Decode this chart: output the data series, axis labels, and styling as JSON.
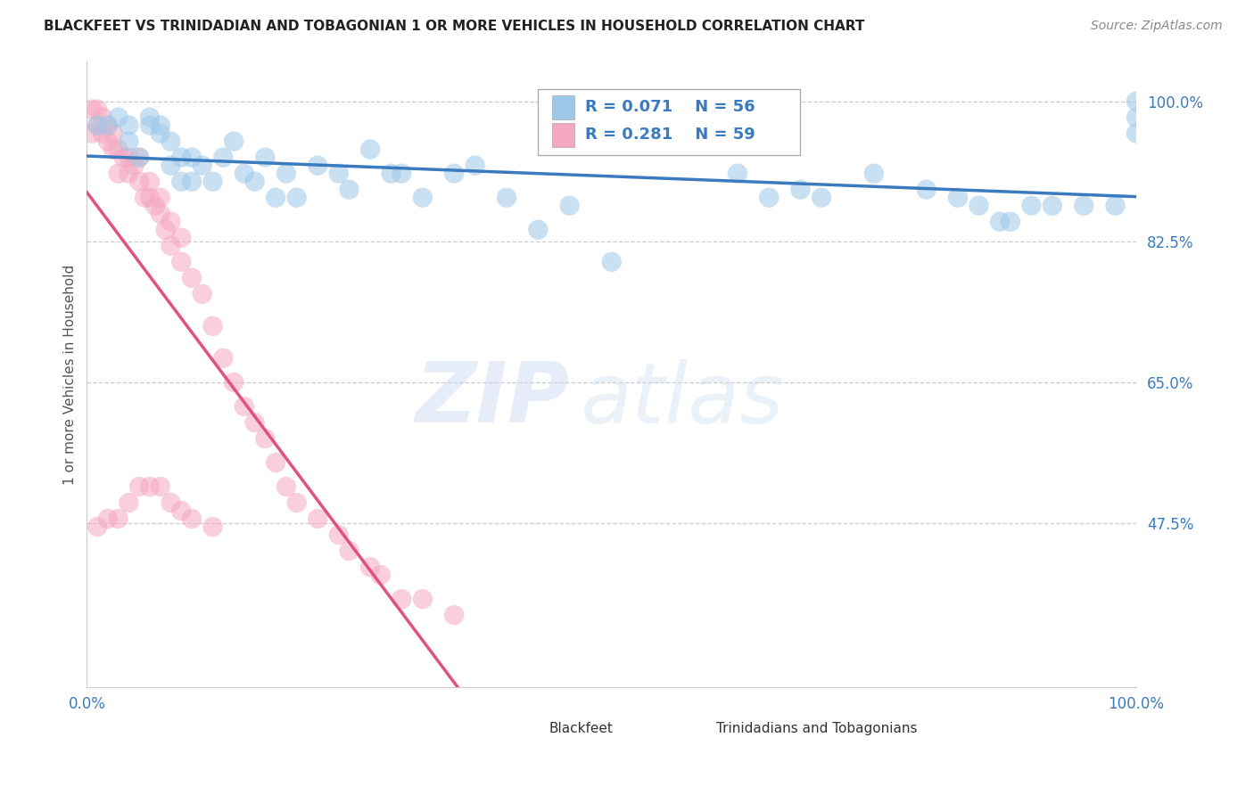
{
  "title": "BLACKFEET VS TRINIDADIAN AND TOBAGONIAN 1 OR MORE VEHICLES IN HOUSEHOLD CORRELATION CHART",
  "source": "Source: ZipAtlas.com",
  "ylabel": "1 or more Vehicles in Household",
  "xlim": [
    0.0,
    1.0
  ],
  "ylim": [
    0.27,
    1.05
  ],
  "yticks": [
    0.475,
    0.65,
    0.825,
    1.0
  ],
  "ytick_labels": [
    "47.5%",
    "65.0%",
    "82.5%",
    "100.0%"
  ],
  "xticks": [
    0.0,
    0.25,
    0.5,
    0.75,
    1.0
  ],
  "xtick_labels": [
    "0.0%",
    "",
    "",
    "",
    "100.0%"
  ],
  "blue_R": 0.071,
  "blue_N": 56,
  "pink_R": 0.281,
  "pink_N": 59,
  "blue_color": "#9ec8e8",
  "pink_color": "#f4a8bf",
  "blue_line_color": "#3a7bbf",
  "pink_line_color": "#e05080",
  "legend_label_blue": "Blackfeet",
  "legend_label_pink": "Trinidadians and Tobagonians",
  "blue_x": [
    0.01,
    0.02,
    0.03,
    0.04,
    0.04,
    0.05,
    0.06,
    0.06,
    0.07,
    0.07,
    0.08,
    0.08,
    0.09,
    0.09,
    0.1,
    0.1,
    0.11,
    0.12,
    0.13,
    0.14,
    0.15,
    0.16,
    0.17,
    0.18,
    0.19,
    0.2,
    0.22,
    0.24,
    0.25,
    0.27,
    0.29,
    0.3,
    0.32,
    0.35,
    0.37,
    0.4,
    0.43,
    0.46,
    0.5,
    0.62,
    0.75,
    0.8,
    0.83,
    0.85,
    0.87,
    0.88,
    0.9,
    0.92,
    0.95,
    0.98,
    1.0,
    1.0,
    1.0,
    0.7,
    0.68,
    0.65
  ],
  "blue_y": [
    0.97,
    0.97,
    0.98,
    0.95,
    0.97,
    0.93,
    0.97,
    0.98,
    0.96,
    0.97,
    0.92,
    0.95,
    0.9,
    0.93,
    0.9,
    0.93,
    0.92,
    0.9,
    0.93,
    0.95,
    0.91,
    0.9,
    0.93,
    0.88,
    0.91,
    0.88,
    0.92,
    0.91,
    0.89,
    0.94,
    0.91,
    0.91,
    0.88,
    0.91,
    0.92,
    0.88,
    0.84,
    0.87,
    0.8,
    0.91,
    0.91,
    0.89,
    0.88,
    0.87,
    0.85,
    0.85,
    0.87,
    0.87,
    0.87,
    0.87,
    1.0,
    0.98,
    0.96,
    0.88,
    0.89,
    0.88
  ],
  "pink_x": [
    0.005,
    0.005,
    0.01,
    0.01,
    0.015,
    0.015,
    0.02,
    0.02,
    0.025,
    0.025,
    0.03,
    0.03,
    0.035,
    0.04,
    0.04,
    0.045,
    0.05,
    0.05,
    0.055,
    0.06,
    0.06,
    0.065,
    0.07,
    0.07,
    0.075,
    0.08,
    0.08,
    0.09,
    0.09,
    0.1,
    0.11,
    0.12,
    0.13,
    0.14,
    0.15,
    0.16,
    0.17,
    0.18,
    0.19,
    0.2,
    0.22,
    0.24,
    0.25,
    0.27,
    0.28,
    0.3,
    0.32,
    0.35,
    0.01,
    0.02,
    0.03,
    0.04,
    0.05,
    0.06,
    0.07,
    0.08,
    0.09,
    0.1,
    0.12
  ],
  "pink_y": [
    0.96,
    0.99,
    0.97,
    0.99,
    0.96,
    0.98,
    0.95,
    0.97,
    0.94,
    0.96,
    0.91,
    0.94,
    0.93,
    0.91,
    0.93,
    0.92,
    0.9,
    0.93,
    0.88,
    0.88,
    0.9,
    0.87,
    0.86,
    0.88,
    0.84,
    0.82,
    0.85,
    0.8,
    0.83,
    0.78,
    0.76,
    0.72,
    0.68,
    0.65,
    0.62,
    0.6,
    0.58,
    0.55,
    0.52,
    0.5,
    0.48,
    0.46,
    0.44,
    0.42,
    0.41,
    0.38,
    0.38,
    0.36,
    0.47,
    0.48,
    0.48,
    0.5,
    0.52,
    0.52,
    0.52,
    0.5,
    0.49,
    0.48,
    0.47
  ],
  "watermark_zip": "ZIP",
  "watermark_atlas": "atlas",
  "background_color": "#ffffff",
  "grid_color": "#cccccc",
  "tick_color": "#3a7bbf"
}
